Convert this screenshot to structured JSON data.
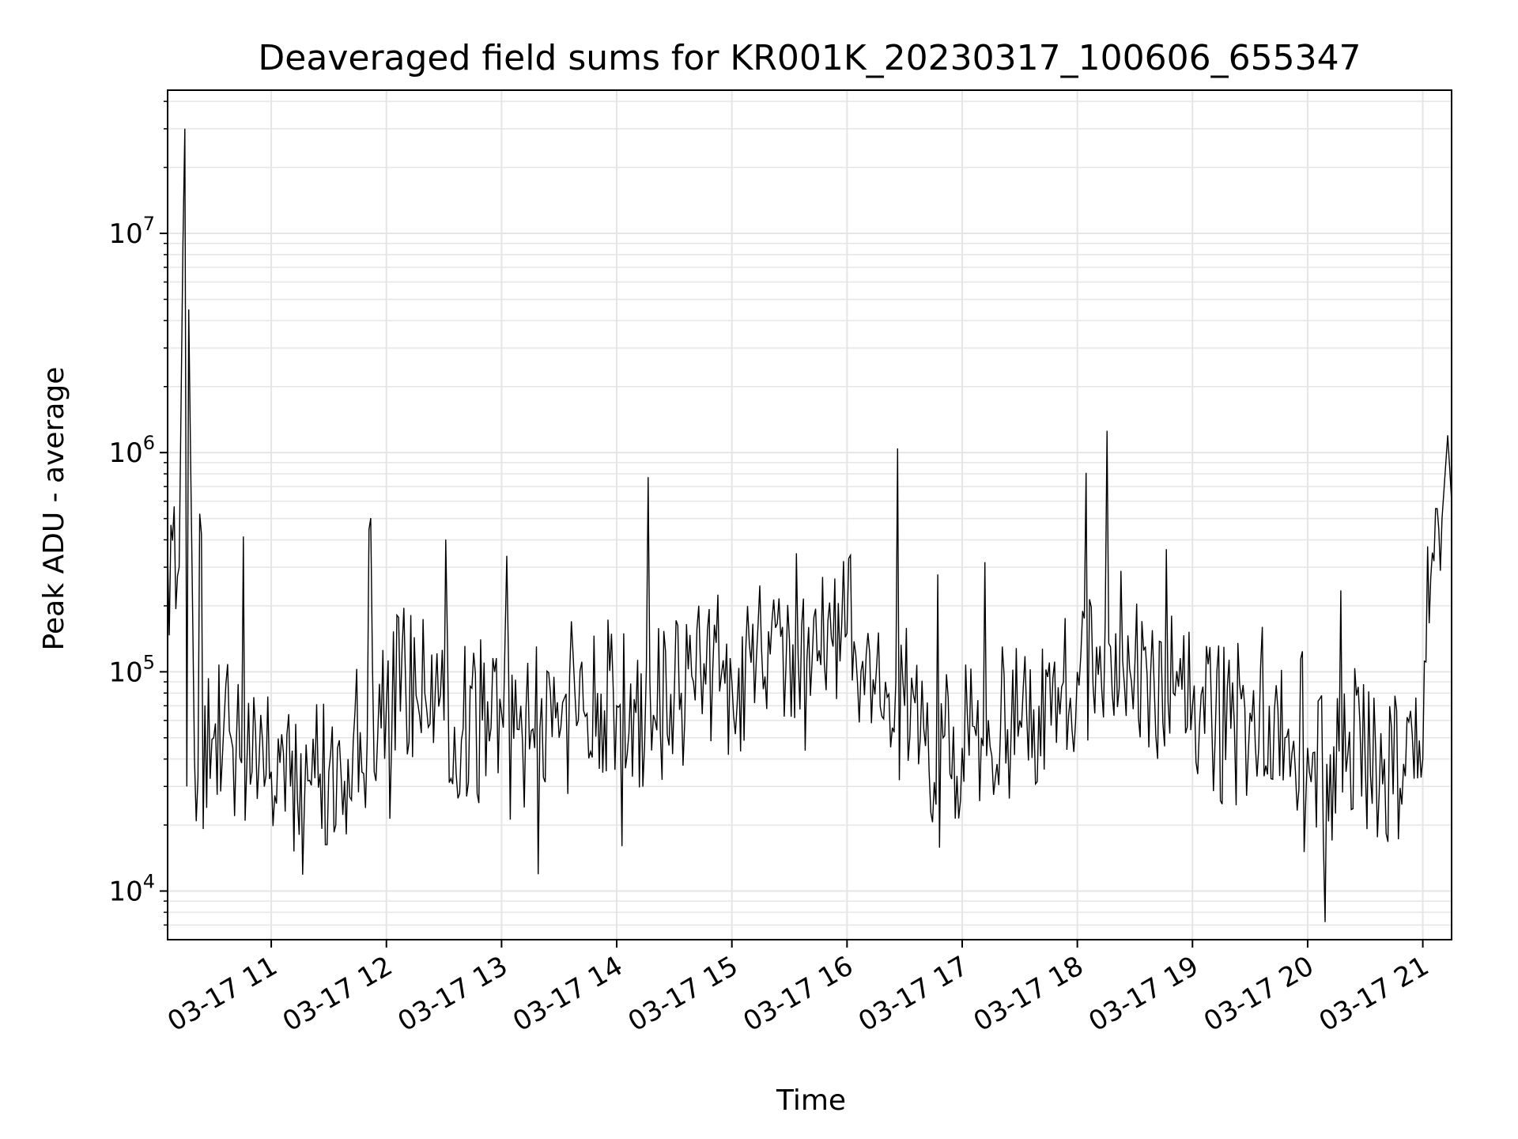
{
  "chart_data": {
    "type": "line",
    "title": "Deaveraged field sums for KR001K_20230317_100606_655347",
    "xlabel": "Time",
    "ylabel": "Peak ADU - average",
    "yscale": "log",
    "ylim": [
      6000,
      45000000
    ],
    "xlim": [
      "03-17 10:06",
      "03-17 21:15"
    ],
    "grid": true,
    "line_color": "#000000",
    "grid_color": "#e5e5e5",
    "x_ticks": [
      {
        "value": "03-17 11:00",
        "label": "03-17 11"
      },
      {
        "value": "03-17 12:00",
        "label": "03-17 12"
      },
      {
        "value": "03-17 13:00",
        "label": "03-17 13"
      },
      {
        "value": "03-17 14:00",
        "label": "03-17 14"
      },
      {
        "value": "03-17 15:00",
        "label": "03-17 15"
      },
      {
        "value": "03-17 16:00",
        "label": "03-17 16"
      },
      {
        "value": "03-17 17:00",
        "label": "03-17 17"
      },
      {
        "value": "03-17 18:00",
        "label": "03-17 18"
      },
      {
        "value": "03-17 19:00",
        "label": "03-17 19"
      },
      {
        "value": "03-17 20:00",
        "label": "03-17 20"
      },
      {
        "value": "03-17 21:00",
        "label": "03-17 21"
      }
    ],
    "y_ticks": [
      {
        "value": 10000,
        "base": "10",
        "exp": "4"
      },
      {
        "value": 100000,
        "base": "10",
        "exp": "5"
      },
      {
        "value": 1000000,
        "base": "10",
        "exp": "6"
      },
      {
        "value": 10000000,
        "base": "10",
        "exp": "7"
      }
    ],
    "series": [
      {
        "x": [
          "03-17 10:06",
          "03-17 10:12",
          "03-17 10:14",
          "03-17 10:15",
          "03-17 10:16",
          "03-17 10:17",
          "03-17 10:20",
          "03-17 10:30",
          "03-17 10:40",
          "03-17 10:50",
          "03-17 11:00",
          "03-17 11:10",
          "03-17 11:20",
          "03-17 11:30",
          "03-17 11:40",
          "03-17 11:50",
          "03-17 12:00",
          "03-17 12:10",
          "03-17 12:20",
          "03-17 12:30",
          "03-17 12:40",
          "03-17 12:50",
          "03-17 13:00",
          "03-17 13:10",
          "03-17 13:20",
          "03-17 13:30",
          "03-17 13:40",
          "03-17 13:50",
          "03-17 14:00",
          "03-17 14:10",
          "03-17 14:20",
          "03-17 14:30",
          "03-17 14:40",
          "03-17 14:50",
          "03-17 15:00",
          "03-17 15:10",
          "03-17 15:20",
          "03-17 15:30",
          "03-17 15:40",
          "03-17 15:50",
          "03-17 16:00",
          "03-17 16:10",
          "03-17 16:20",
          "03-17 16:30",
          "03-17 16:40",
          "03-17 16:50",
          "03-17 17:00",
          "03-17 17:10",
          "03-17 17:20",
          "03-17 17:30",
          "03-17 17:40",
          "03-17 17:50",
          "03-17 18:00",
          "03-17 18:10",
          "03-17 18:20",
          "03-17 18:30",
          "03-17 18:40",
          "03-17 18:50",
          "03-17 19:00",
          "03-17 19:10",
          "03-17 19:20",
          "03-17 19:30",
          "03-17 19:40",
          "03-17 19:50",
          "03-17 20:00",
          "03-17 20:10",
          "03-17 20:20",
          "03-17 20:30",
          "03-17 20:40",
          "03-17 20:50",
          "03-17 21:00",
          "03-17 21:05",
          "03-17 21:10",
          "03-17 21:13",
          "03-17 21:15"
        ],
        "values": [
          350000,
          300000,
          9000000,
          30000000,
          30000,
          4500000,
          40000,
          50000,
          45000,
          35000,
          35000,
          30000,
          32000,
          35000,
          40000,
          50000,
          70000,
          90000,
          80000,
          60000,
          55000,
          60000,
          65000,
          70000,
          55000,
          50000,
          60000,
          80000,
          70000,
          65000,
          60000,
          80000,
          90000,
          100000,
          90000,
          110000,
          120000,
          140000,
          160000,
          170000,
          150000,
          120000,
          90000,
          70000,
          55000,
          50000,
          45000,
          50000,
          55000,
          60000,
          70000,
          85000,
          100000,
          130000,
          150000,
          110000,
          90000,
          80000,
          70000,
          60000,
          55000,
          65000,
          70000,
          55000,
          45000,
          38000,
          35000,
          38000,
          40000,
          38000,
          40000,
          350000,
          500000,
          1200000,
          600000
        ]
      }
    ]
  }
}
